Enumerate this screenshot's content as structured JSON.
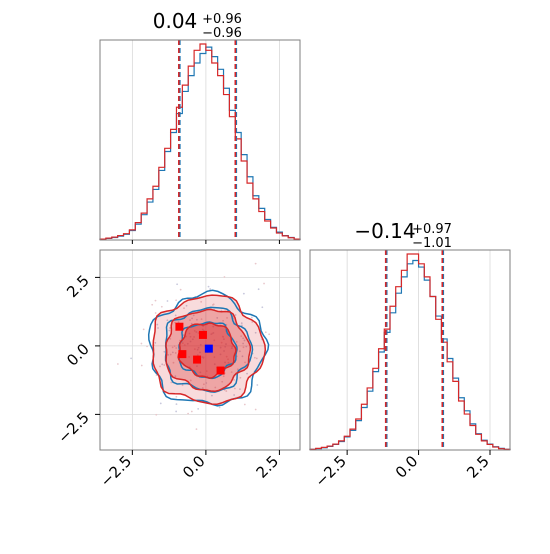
{
  "chart_data": {
    "type": "corner",
    "series": [
      {
        "name": "",
        "color": "#1f77b4"
      },
      {
        "name": "",
        "color": "#d62728"
      }
    ],
    "parameters": [
      {
        "title_main": "0.04",
        "title_sup": "+0.96",
        "title_sub": "−0.96",
        "median": 0.04,
        "quantile_lo": -0.92,
        "quantile_hi": 1.0,
        "truth": 1.0,
        "xlim": [
          -3.6,
          3.2
        ],
        "ticks": [
          -2.5,
          0.0,
          2.5
        ],
        "tick_labels": [
          "−2.5",
          "0.0",
          "2.5"
        ]
      },
      {
        "title_main": "−0.14",
        "title_sup": "+0.97",
        "title_sub": "−1.01",
        "median": -0.14,
        "quantile_lo": -1.15,
        "quantile_hi": 0.83,
        "truth": 0.83,
        "xlim": [
          -3.8,
          3.2
        ],
        "ticks": [
          -2.5,
          0.0,
          2.5
        ],
        "tick_labels": [
          "−2.5",
          "0.0",
          "2.5"
        ]
      }
    ],
    "histogram_1_density": {
      "x_bins": [
        -3.5,
        -3.3,
        -3.1,
        -2.9,
        -2.7,
        -2.5,
        -2.3,
        -2.1,
        -1.9,
        -1.7,
        -1.5,
        -1.3,
        -1.1,
        -0.9,
        -0.7,
        -0.5,
        -0.3,
        -0.1,
        0.1,
        0.3,
        0.5,
        0.7,
        0.9,
        1.1,
        1.3,
        1.5,
        1.7,
        1.9,
        2.1,
        2.3,
        2.5,
        2.7,
        2.9,
        3.1
      ],
      "blue": [
        0.002,
        0.005,
        0.008,
        0.012,
        0.018,
        0.03,
        0.05,
        0.08,
        0.12,
        0.16,
        0.22,
        0.28,
        0.34,
        0.4,
        0.47,
        0.52,
        0.56,
        0.59,
        0.61,
        0.58,
        0.54,
        0.48,
        0.41,
        0.34,
        0.27,
        0.2,
        0.14,
        0.1,
        0.065,
        0.04,
        0.025,
        0.014,
        0.008,
        0.003
      ],
      "red": [
        0.003,
        0.006,
        0.009,
        0.014,
        0.02,
        0.032,
        0.055,
        0.085,
        0.13,
        0.17,
        0.23,
        0.29,
        0.35,
        0.42,
        0.49,
        0.55,
        0.6,
        0.62,
        0.6,
        0.56,
        0.52,
        0.46,
        0.39,
        0.32,
        0.25,
        0.18,
        0.13,
        0.09,
        0.06,
        0.038,
        0.022,
        0.013,
        0.007,
        0.003
      ]
    },
    "histogram_2_density": {
      "x_bins": [
        -3.7,
        -3.5,
        -3.3,
        -3.1,
        -2.9,
        -2.7,
        -2.5,
        -2.3,
        -2.1,
        -1.9,
        -1.7,
        -1.5,
        -1.3,
        -1.1,
        -0.9,
        -0.7,
        -0.5,
        -0.3,
        -0.1,
        0.1,
        0.3,
        0.5,
        0.7,
        0.9,
        1.1,
        1.3,
        1.5,
        1.7,
        1.9,
        2.1,
        2.3,
        2.5,
        2.7,
        2.9,
        3.1
      ],
      "blue": [
        0.002,
        0.004,
        0.007,
        0.011,
        0.017,
        0.026,
        0.04,
        0.06,
        0.09,
        0.13,
        0.18,
        0.24,
        0.3,
        0.36,
        0.42,
        0.48,
        0.53,
        0.57,
        0.58,
        0.56,
        0.52,
        0.47,
        0.41,
        0.34,
        0.28,
        0.22,
        0.16,
        0.12,
        0.08,
        0.05,
        0.03,
        0.018,
        0.01,
        0.005,
        0.002
      ],
      "red": [
        0.002,
        0.005,
        0.008,
        0.012,
        0.018,
        0.028,
        0.042,
        0.064,
        0.095,
        0.14,
        0.19,
        0.25,
        0.31,
        0.37,
        0.44,
        0.5,
        0.55,
        0.6,
        0.6,
        0.57,
        0.53,
        0.47,
        0.4,
        0.33,
        0.27,
        0.21,
        0.15,
        0.11,
        0.075,
        0.048,
        0.028,
        0.017,
        0.009,
        0.004,
        0.002
      ]
    },
    "joint_2d": {
      "center": [
        0.04,
        -0.14
      ],
      "sigma": [
        0.96,
        0.99
      ],
      "contour_levels_sigma": [
        1.0,
        1.5,
        2.0
      ],
      "fill_alphas": [
        0.85,
        0.55,
        0.3
      ],
      "red_markers": [
        [
          -0.9,
          0.7
        ],
        [
          -0.1,
          0.4
        ],
        [
          -0.8,
          -0.3
        ],
        [
          -0.3,
          -0.5
        ],
        [
          0.5,
          -0.9
        ]
      ],
      "blue_marker": [
        0.1,
        -0.1
      ]
    }
  }
}
